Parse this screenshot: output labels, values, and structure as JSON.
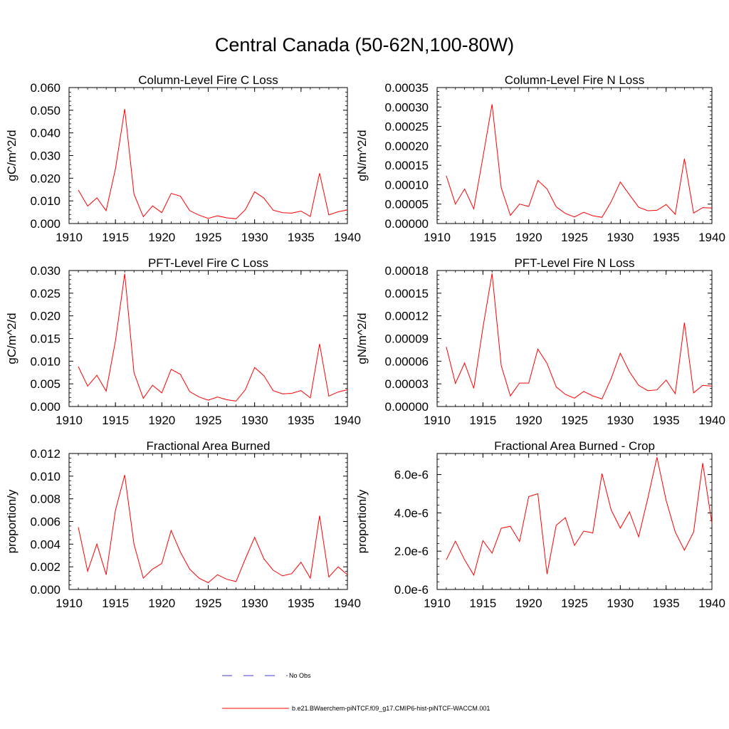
{
  "figure": {
    "title": "Central Canada (50-62N,100-80W)"
  },
  "legend": {
    "entries": [
      {
        "label": "No Obs",
        "color": "#3b3bd6",
        "style": "dashed"
      },
      {
        "label": "b.e21.BWaerchem-piNTCF.f09_g17.CMIP6-hist-piNTCF-WACCM.001",
        "color": "#ff0000",
        "style": "solid"
      }
    ]
  },
  "colors": {
    "series": "#ff0000",
    "obs": "#3b3bd6",
    "axis": "#000000"
  },
  "chart_data": [
    {
      "type": "line",
      "title": "Column-Level Fire C Loss",
      "ylabel": "gC/m^2/d",
      "xlim": [
        1910,
        1940
      ],
      "ylim": [
        0,
        0.06
      ],
      "yticks": [
        0,
        0.01,
        0.02,
        0.03,
        0.04,
        0.05,
        0.06
      ],
      "ytick_labels": [
        "0.000",
        "0.010",
        "0.020",
        "0.030",
        "0.040",
        "0.050",
        "0.060"
      ],
      "xticks": [
        1910,
        1915,
        1920,
        1925,
        1930,
        1935,
        1940
      ],
      "xtick_labels": [
        "1910",
        "1915",
        "1920",
        "1925",
        "1930",
        "1935",
        "1940"
      ],
      "x": [
        1911,
        1912,
        1913,
        1914,
        1915,
        1916,
        1917,
        1918,
        1919,
        1920,
        1921,
        1922,
        1923,
        1924,
        1925,
        1926,
        1927,
        1928,
        1929,
        1930,
        1931,
        1932,
        1933,
        1934,
        1935,
        1936,
        1937,
        1938,
        1939,
        1940
      ],
      "series": [
        {
          "name": "b.e21.BWaerchem-piNTCF.f09_g17.CMIP6-hist-piNTCF-WACCM.001",
          "values": [
            0.0148,
            0.0077,
            0.0113,
            0.0057,
            0.0242,
            0.0505,
            0.013,
            0.003,
            0.0078,
            0.0048,
            0.0133,
            0.0121,
            0.0057,
            0.0037,
            0.0023,
            0.0034,
            0.0025,
            0.0021,
            0.0061,
            0.014,
            0.0112,
            0.0059,
            0.0048,
            0.0046,
            0.0055,
            0.0031,
            0.0222,
            0.0038,
            0.0052,
            0.006
          ]
        }
      ]
    },
    {
      "type": "line",
      "title": "Column-Level Fire N Loss",
      "ylabel": "gN/m^2/d",
      "xlim": [
        1910,
        1940
      ],
      "ylim": [
        0,
        0.00035
      ],
      "yticks": [
        0,
        5e-05,
        0.0001,
        0.00015,
        0.0002,
        0.00025,
        0.0003,
        0.00035
      ],
      "ytick_labels": [
        "0.00000",
        "0.00005",
        "0.00010",
        "0.00015",
        "0.00020",
        "0.00025",
        "0.00030",
        "0.00035"
      ],
      "xticks": [
        1910,
        1915,
        1920,
        1925,
        1930,
        1935,
        1940
      ],
      "xtick_labels": [
        "1910",
        "1915",
        "1920",
        "1925",
        "1930",
        "1935",
        "1940"
      ],
      "x": [
        1911,
        1912,
        1913,
        1914,
        1915,
        1916,
        1917,
        1918,
        1919,
        1920,
        1921,
        1922,
        1923,
        1924,
        1925,
        1926,
        1927,
        1928,
        1929,
        1930,
        1931,
        1932,
        1933,
        1934,
        1935,
        1936,
        1937,
        1938,
        1939,
        1940
      ],
      "series": [
        {
          "name": "b.e21.BWaerchem-piNTCF.f09_g17.CMIP6-hist-piNTCF-WACCM.001",
          "values": [
            0.000123,
            5e-05,
            8.9e-05,
            3.8e-05,
            0.00017,
            0.000307,
            9.2e-05,
            2.1e-05,
            5e-05,
            4.4e-05,
            0.000111,
            8.9e-05,
            4.3e-05,
            2.6e-05,
            1.7e-05,
            2.9e-05,
            2e-05,
            1.6e-05,
            5.6e-05,
            0.000107,
            7.4e-05,
            4.2e-05,
            3.3e-05,
            3.4e-05,
            4.9e-05,
            2.4e-05,
            0.000167,
            2.7e-05,
            4.1e-05,
            4e-05
          ]
        }
      ]
    },
    {
      "type": "line",
      "title": "PFT-Level Fire C Loss",
      "ylabel": "gC/m^2/d",
      "xlim": [
        1910,
        1940
      ],
      "ylim": [
        0,
        0.03
      ],
      "yticks": [
        0,
        0.005,
        0.01,
        0.015,
        0.02,
        0.025,
        0.03
      ],
      "ytick_labels": [
        "0.000",
        "0.005",
        "0.010",
        "0.015",
        "0.020",
        "0.025",
        "0.030"
      ],
      "xticks": [
        1910,
        1915,
        1920,
        1925,
        1930,
        1935,
        1940
      ],
      "xtick_labels": [
        "1910",
        "1915",
        "1920",
        "1925",
        "1930",
        "1935",
        "1940"
      ],
      "x": [
        1911,
        1912,
        1913,
        1914,
        1915,
        1916,
        1917,
        1918,
        1919,
        1920,
        1921,
        1922,
        1923,
        1924,
        1925,
        1926,
        1927,
        1928,
        1929,
        1930,
        1931,
        1932,
        1933,
        1934,
        1935,
        1936,
        1937,
        1938,
        1939,
        1940
      ],
      "series": [
        {
          "name": "b.e21.BWaerchem-piNTCF.f09_g17.CMIP6-hist-piNTCF-WACCM.001",
          "values": [
            0.0088,
            0.0045,
            0.0069,
            0.0034,
            0.0145,
            0.0293,
            0.0075,
            0.0018,
            0.0047,
            0.003,
            0.0082,
            0.0071,
            0.0033,
            0.0021,
            0.0014,
            0.0021,
            0.0015,
            0.0012,
            0.0037,
            0.0086,
            0.0068,
            0.0035,
            0.0028,
            0.0029,
            0.0035,
            0.0019,
            0.0138,
            0.0023,
            0.0032,
            0.0037
          ]
        }
      ]
    },
    {
      "type": "line",
      "title": "PFT-Level Fire N Loss",
      "ylabel": "gN/m^2/d",
      "xlim": [
        1910,
        1940
      ],
      "ylim": [
        0,
        0.00018
      ],
      "yticks": [
        0,
        3e-05,
        6e-05,
        9e-05,
        0.00012,
        0.00015,
        0.00018
      ],
      "ytick_labels": [
        "0.00000",
        "0.00003",
        "0.00006",
        "0.00009",
        "0.00012",
        "0.00015",
        "0.00018"
      ],
      "xticks": [
        1910,
        1915,
        1920,
        1925,
        1930,
        1935,
        1940
      ],
      "xtick_labels": [
        "1910",
        "1915",
        "1920",
        "1925",
        "1930",
        "1935",
        "1940"
      ],
      "x": [
        1911,
        1912,
        1913,
        1914,
        1915,
        1916,
        1917,
        1918,
        1919,
        1920,
        1921,
        1922,
        1923,
        1924,
        1925,
        1926,
        1927,
        1928,
        1929,
        1930,
        1931,
        1932,
        1933,
        1934,
        1935,
        1936,
        1937,
        1938,
        1939,
        1940
      ],
      "series": [
        {
          "name": "b.e21.BWaerchem-piNTCF.f09_g17.CMIP6-hist-piNTCF-WACCM.001",
          "values": [
            7.9e-05,
            3.05e-05,
            5.75e-05,
            2.4e-05,
            0.000104,
            0.000176,
            5.4e-05,
            1.4e-05,
            3.1e-05,
            3.1e-05,
            7.6e-05,
            5.7e-05,
            2.6e-05,
            1.6e-05,
            1.1e-05,
            2e-05,
            1.4e-05,
            1e-05,
            3.7e-05,
            7.05e-05,
            4.6e-05,
            2.8e-05,
            2.1e-05,
            2.2e-05,
            3.5e-05,
            1.7e-05,
            0.000111,
            1.8e-05,
            2.8e-05,
            2.7e-05
          ]
        }
      ]
    },
    {
      "type": "line",
      "title": "Fractional Area Burned",
      "ylabel": "proportion/y",
      "xlim": [
        1910,
        1940
      ],
      "ylim": [
        0,
        0.012
      ],
      "yticks": [
        0,
        0.002,
        0.004,
        0.006,
        0.008,
        0.01,
        0.012
      ],
      "ytick_labels": [
        "0.000",
        "0.002",
        "0.004",
        "0.006",
        "0.008",
        "0.010",
        "0.012"
      ],
      "xticks": [
        1910,
        1915,
        1920,
        1925,
        1930,
        1935,
        1940
      ],
      "xtick_labels": [
        "1910",
        "1915",
        "1920",
        "1925",
        "1930",
        "1935",
        "1940"
      ],
      "x": [
        1911,
        1912,
        1913,
        1914,
        1915,
        1916,
        1917,
        1918,
        1919,
        1920,
        1921,
        1922,
        1923,
        1924,
        1925,
        1926,
        1927,
        1928,
        1929,
        1930,
        1931,
        1932,
        1933,
        1934,
        1935,
        1936,
        1937,
        1938,
        1939,
        1940
      ],
      "series": [
        {
          "name": "b.e21.BWaerchem-piNTCF.f09_g17.CMIP6-hist-piNTCF-WACCM.001",
          "values": [
            0.0055,
            0.0016,
            0.004,
            0.0013,
            0.007,
            0.0101,
            0.004,
            0.001,
            0.0018,
            0.0023,
            0.0052,
            0.0033,
            0.0018,
            0.001,
            0.0006,
            0.0013,
            0.0009,
            0.0007,
            0.0027,
            0.0046,
            0.0027,
            0.0017,
            0.0012,
            0.0014,
            0.0024,
            0.001,
            0.0065,
            0.0011,
            0.002,
            0.0013
          ]
        }
      ]
    },
    {
      "type": "line",
      "title": "Fractional Area Burned - Crop",
      "ylabel": "proportion/y",
      "xlim": [
        1910,
        1940
      ],
      "ylim": [
        0,
        7.1e-06
      ],
      "yticks": [
        0,
        2e-06,
        4e-06,
        6e-06
      ],
      "ytick_labels": [
        "0.0e-6",
        "2.0e-6",
        "4.0e-6",
        "6.0e-6"
      ],
      "xticks": [
        1910,
        1915,
        1920,
        1925,
        1930,
        1935,
        1940
      ],
      "xtick_labels": [
        "1910",
        "1915",
        "1920",
        "1925",
        "1930",
        "1935",
        "1940"
      ],
      "x": [
        1911,
        1912,
        1913,
        1914,
        1915,
        1916,
        1917,
        1918,
        1919,
        1920,
        1921,
        1922,
        1923,
        1924,
        1925,
        1926,
        1927,
        1928,
        1929,
        1930,
        1931,
        1932,
        1933,
        1934,
        1935,
        1936,
        1937,
        1938,
        1939,
        1940
      ],
      "series": [
        {
          "name": "b.e21.BWaerchem-piNTCF.f09_g17.CMIP6-hist-piNTCF-WACCM.001",
          "values": [
            1.55e-06,
            2.52e-06,
            1.55e-06,
            7.5e-07,
            2.55e-06,
            1.9e-06,
            3.2e-06,
            3.3e-06,
            2.5e-06,
            4.85e-06,
            5e-06,
            8e-07,
            3.35e-06,
            3.75e-06,
            2.3e-06,
            3.05e-06,
            2.95e-06,
            6.05e-06,
            4.15e-06,
            3.2e-06,
            4.05e-06,
            2.75e-06,
            4.75e-06,
            6.9e-06,
            4.65e-06,
            3e-06,
            2.05e-06,
            3e-06,
            6.6e-06,
            3.45e-06
          ]
        }
      ]
    }
  ]
}
